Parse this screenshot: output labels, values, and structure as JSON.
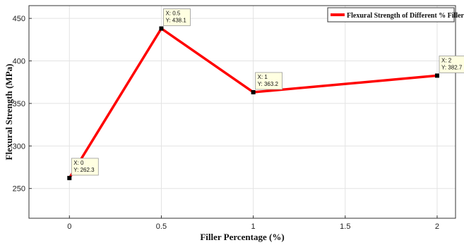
{
  "chart_data": {
    "type": "line",
    "xlabel": "Filler Percentage (%)",
    "ylabel": "Flexural Strength (MPa)",
    "xlim": [
      -0.22,
      2.1
    ],
    "ylim": [
      215,
      465
    ],
    "xticks": [
      0,
      0.5,
      1,
      1.5,
      2
    ],
    "xtick_labels": [
      "0",
      "0.5",
      "1",
      "1.5",
      "2"
    ],
    "yticks": [
      250,
      300,
      350,
      400,
      450
    ],
    "ytick_labels": [
      "250",
      "300",
      "350",
      "400",
      "450"
    ],
    "grid": true,
    "legend_position": "top-right",
    "series": [
      {
        "name": "Flexural Strength of Different % Filler",
        "color": "#ff0000",
        "x": [
          0,
          0.5,
          1,
          2
        ],
        "y": [
          262.3,
          438.1,
          363.2,
          382.7
        ]
      }
    ],
    "annotations": [
      {
        "x": 0,
        "y": 262.3,
        "line1": "X: 0",
        "line2": "Y: 262.3"
      },
      {
        "x": 0.5,
        "y": 438.1,
        "line1": "X: 0.5",
        "line2": "Y: 438.1"
      },
      {
        "x": 1,
        "y": 363.2,
        "line1": "X: 1",
        "line2": "Y: 363.2"
      },
      {
        "x": 2,
        "y": 382.7,
        "line1": "X: 2",
        "line2": "Y: 382.7"
      }
    ]
  }
}
